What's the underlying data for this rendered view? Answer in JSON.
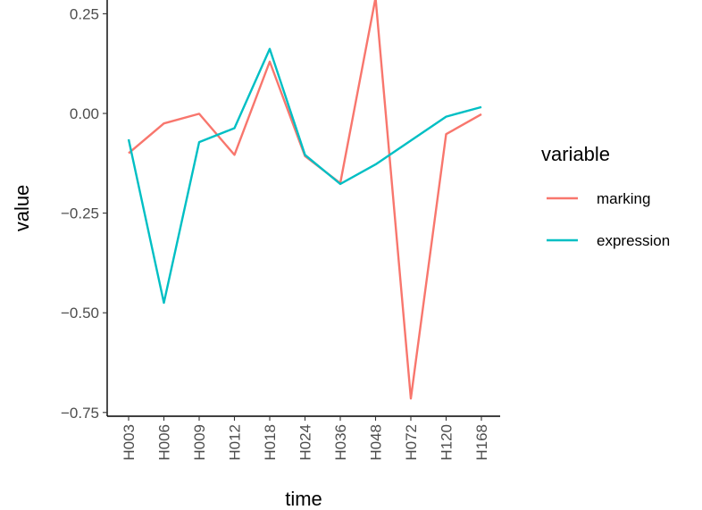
{
  "chart_data": {
    "type": "line",
    "xlabel": "time",
    "ylabel": "value",
    "categories": [
      "H003",
      "H006",
      "H009",
      "H012",
      "H018",
      "H024",
      "H036",
      "H048",
      "H072",
      "H120",
      "H168"
    ],
    "ylim": [
      -0.76,
      0.29
    ],
    "yticks": [
      0.25,
      0.0,
      -0.25,
      -0.5,
      -0.75
    ],
    "ytick_labels": [
      "0.25",
      "0.00",
      "−0.25",
      "−0.50",
      "−0.75"
    ],
    "grid": false,
    "legend": {
      "title": "variable",
      "position": "right"
    },
    "series": [
      {
        "name": "marking",
        "color": "#F8766D",
        "values": [
          -0.1,
          -0.025,
          -0.001,
          -0.104,
          0.13,
          -0.107,
          -0.175,
          0.29,
          -0.715,
          -0.052,
          -0.002
        ]
      },
      {
        "name": "expression",
        "color": "#00BFC4",
        "values": [
          -0.065,
          -0.475,
          -0.072,
          -0.037,
          0.162,
          -0.104,
          -0.177,
          -0.128,
          -0.068,
          -0.008,
          0.016
        ]
      }
    ]
  }
}
